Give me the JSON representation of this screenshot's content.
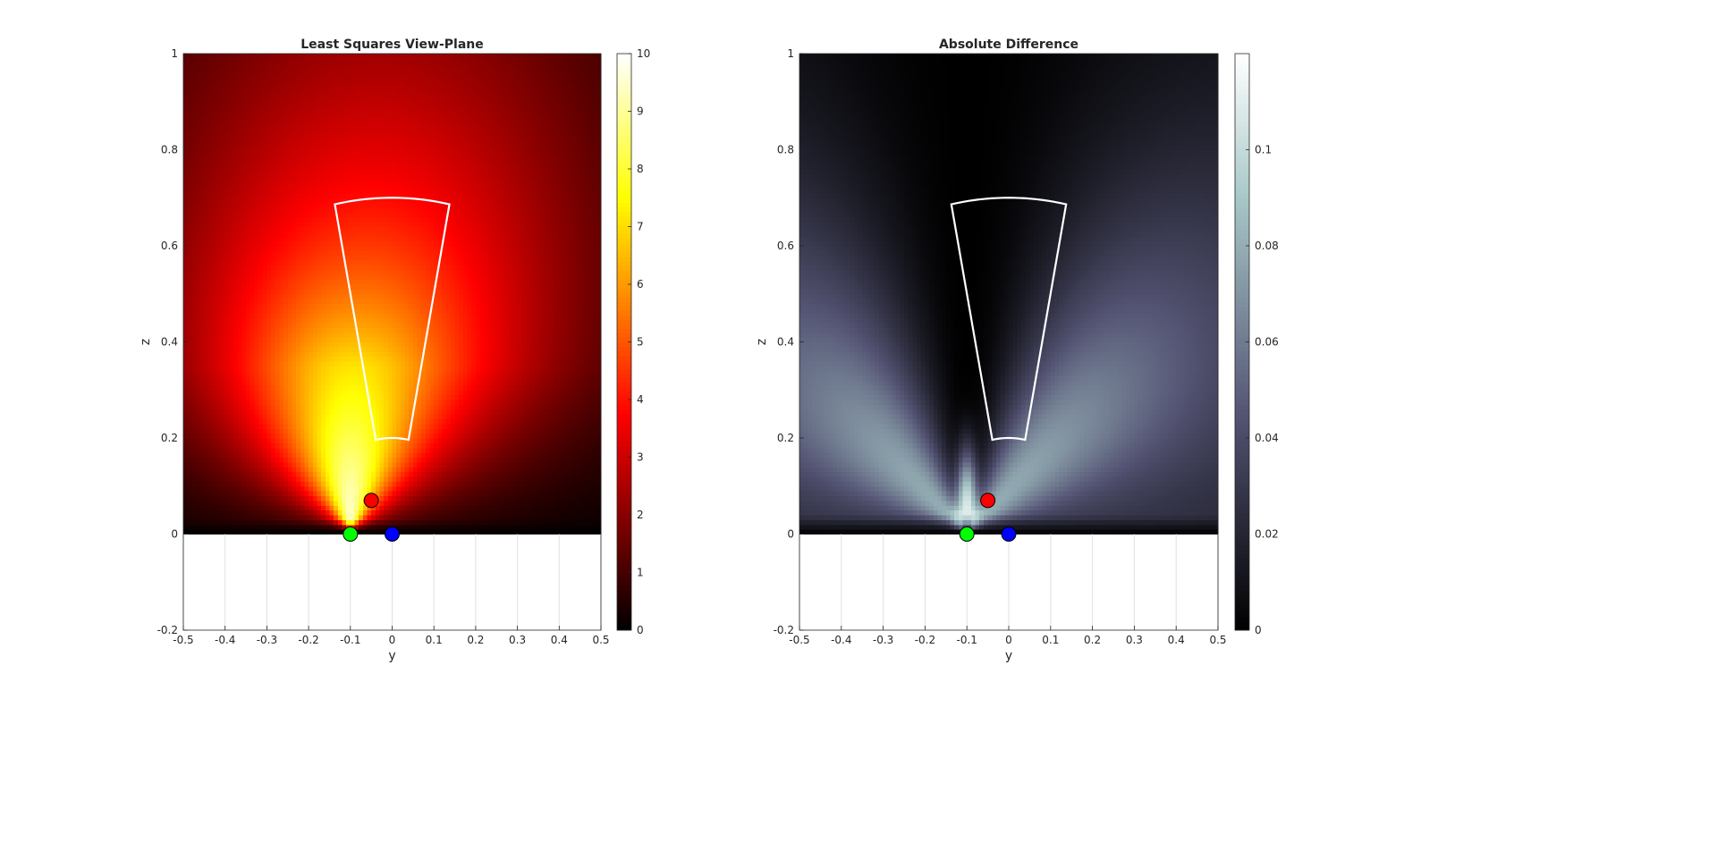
{
  "chart_data": [
    {
      "type": "heatmap",
      "title": "Least Squares View-Plane",
      "xlabel": "y",
      "ylabel": "z",
      "xlim": [
        -0.5,
        0.5
      ],
      "ylim": [
        -0.2,
        1
      ],
      "x_ticks": [
        "-0.5",
        "-0.4",
        "-0.3",
        "-0.2",
        "-0.1",
        "0",
        "0.1",
        "0.2",
        "0.3",
        "0.4",
        "0.5"
      ],
      "y_ticks": [
        "-0.2",
        "0",
        "0.2",
        "0.4",
        "0.6",
        "0.8",
        "1"
      ],
      "grid": "x-only",
      "colormap": "hot",
      "clim": [
        0,
        10
      ],
      "colorbar_ticks": [
        "0",
        "1",
        "2",
        "3",
        "4",
        "5",
        "6",
        "7",
        "8",
        "9",
        "10"
      ],
      "field_region": {
        "y": [
          -0.5,
          0.5
        ],
        "z": [
          0,
          1
        ]
      },
      "sector_outline": {
        "apex": [
          0,
          0
        ],
        "r_inner": 0.2,
        "r_outer": 0.7,
        "half_angle_deg": 11.3,
        "color": "#ffffff"
      },
      "markers": [
        {
          "y": -0.1,
          "z": 0.0,
          "color": "#00ff00"
        },
        {
          "y": 0.0,
          "z": 0.0,
          "color": "#0000ff"
        },
        {
          "y": -0.05,
          "z": 0.07,
          "color": "#ff0000"
        }
      ]
    },
    {
      "type": "heatmap",
      "title": "Absolute Difference",
      "xlabel": "y",
      "ylabel": "z",
      "xlim": [
        -0.5,
        0.5
      ],
      "ylim": [
        -0.2,
        1
      ],
      "x_ticks": [
        "-0.5",
        "-0.4",
        "-0.3",
        "-0.2",
        "-0.1",
        "0",
        "0.1",
        "0.2",
        "0.3",
        "0.4",
        "0.5"
      ],
      "y_ticks": [
        "-0.2",
        "0",
        "0.2",
        "0.4",
        "0.6",
        "0.8",
        "1"
      ],
      "grid": "x-only",
      "colormap": "bone",
      "clim": [
        0,
        0.12
      ],
      "colorbar_ticks": [
        "0",
        "0.02",
        "0.04",
        "0.06",
        "0.08",
        "0.1"
      ],
      "field_region": {
        "y": [
          -0.5,
          0.5
        ],
        "z": [
          0,
          1
        ]
      },
      "sector_outline": {
        "apex": [
          0,
          0
        ],
        "r_inner": 0.2,
        "r_outer": 0.7,
        "half_angle_deg": 11.3,
        "color": "#ffffff"
      },
      "markers": [
        {
          "y": -0.1,
          "z": 0.0,
          "color": "#00ff00"
        },
        {
          "y": 0.0,
          "z": 0.0,
          "color": "#0000ff"
        },
        {
          "y": -0.05,
          "z": 0.07,
          "color": "#ff0000"
        }
      ]
    }
  ]
}
